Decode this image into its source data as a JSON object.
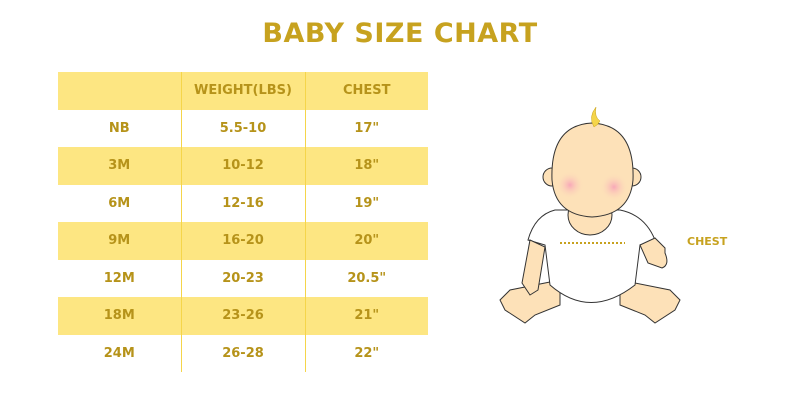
{
  "title": "BABY SIZE CHART",
  "table": {
    "headers": [
      "",
      "WEIGHT(LBS)",
      "CHEST"
    ],
    "rows": [
      [
        "NB",
        "5.5-10",
        "17\""
      ],
      [
        "3M",
        "10-12",
        "18\""
      ],
      [
        "6M",
        "12-16",
        "19\""
      ],
      [
        "9M",
        "16-20",
        "20\""
      ],
      [
        "12M",
        "20-23",
        "20.5\""
      ],
      [
        "18M",
        "23-26",
        "21\""
      ],
      [
        "24M",
        "26-28",
        "22\""
      ]
    ]
  },
  "illustration": {
    "chest_label": "CHEST"
  },
  "colors": {
    "accent": "#c7a21f",
    "row_highlight": "#fde682",
    "skin": "#fde1b8"
  }
}
